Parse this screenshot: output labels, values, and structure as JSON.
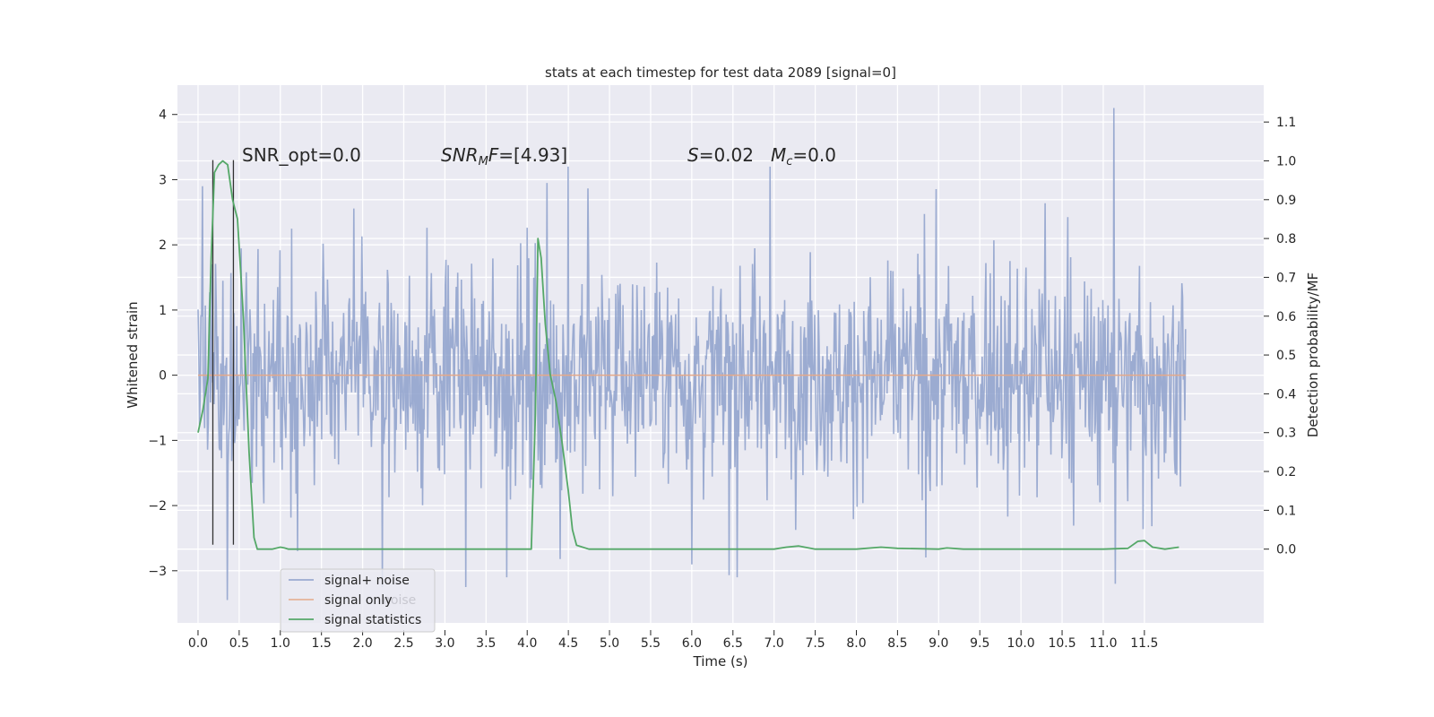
{
  "chart_data": {
    "type": "line",
    "title": "stats at each timestep for test data 2089 [signal=0]",
    "xlabel": "Time (s)",
    "ylabel_left": "Whitened strain",
    "ylabel_right": "Detection probability/MF",
    "xlim": [
      -0.25,
      12.95
    ],
    "ylim_left": [
      -3.8,
      4.45
    ],
    "ylim_right": [
      -0.19,
      1.195
    ],
    "x_ticks": [
      "0.0",
      "0.5",
      "1.0",
      "1.5",
      "2.0",
      "2.5",
      "3.0",
      "3.5",
      "4.0",
      "4.5",
      "5.0",
      "5.5",
      "6.0",
      "6.5",
      "7.0",
      "7.5",
      "8.0",
      "8.5",
      "9.0",
      "9.5",
      "10.0",
      "10.5",
      "11.0",
      "11.5"
    ],
    "y_left_ticks": [
      "4",
      "3",
      "2",
      "1",
      "0",
      "−1",
      "−2",
      "−3"
    ],
    "y_right_ticks": [
      "1.1",
      "1.0",
      "0.9",
      "0.8",
      "0.7",
      "0.6",
      "0.5",
      "0.4",
      "0.3",
      "0.2",
      "0.1",
      "0.0"
    ],
    "grid": true,
    "legend_position": "lower-left",
    "annotations": {
      "snr_opt": "SNR_opt=0.0",
      "snr_mf_base": "SNR",
      "snr_mf_sub": "M",
      "snr_mf_f": "F",
      "snr_mf_value": "=[4.93]",
      "s_symbol": "S",
      "s_value": "=0.02",
      "mc_symbol": "M",
      "mc_sub": "c",
      "mc_value": "=0.0"
    },
    "legend_entries": [
      "signal+ noise",
      "signal only",
      "signal statistics"
    ],
    "legend_overlap_text": "noise",
    "colors": {
      "signal_noise": "#8da0cb",
      "signal_only": "#e4a98a",
      "signal_statistics": "#55a868",
      "marker_lines": "#333333",
      "plot_background": "#eaeaf2",
      "grid": "#ffffff"
    },
    "series": [
      {
        "name": "signal+ noise",
        "axis": "left",
        "description_range": [
          -3.45,
          4.1
        ],
        "x_range": [
          0.0,
          12.0
        ],
        "typical_band": [
          -1.5,
          1.5
        ],
        "notable_peaks": [
          [
            0.05,
            2.9
          ],
          [
            11.13,
            4.1
          ],
          [
            4.5,
            3.2
          ],
          [
            6.95,
            3.2
          ],
          [
            11.15,
            -3.2
          ],
          [
            0.36,
            -3.45
          ],
          [
            6.55,
            -3.1
          ],
          [
            3.75,
            -3.1
          ]
        ]
      },
      {
        "name": "signal only",
        "axis": "left",
        "x": [
          0.0,
          12.0
        ],
        "y": [
          0.0,
          0.0
        ]
      },
      {
        "name": "signal statistics",
        "axis": "right",
        "x": [
          0.0,
          0.06,
          0.12,
          0.16,
          0.2,
          0.25,
          0.3,
          0.36,
          0.42,
          0.48,
          0.55,
          0.62,
          0.68,
          0.72,
          0.8,
          0.9,
          1.0,
          1.05,
          1.1,
          1.2,
          2.0,
          3.0,
          3.5,
          3.8,
          4.0,
          4.05,
          4.1,
          4.13,
          4.17,
          4.22,
          4.28,
          4.35,
          4.42,
          4.5,
          4.55,
          4.6,
          4.75,
          5.0,
          6.0,
          7.0,
          7.15,
          7.3,
          7.5,
          8.0,
          8.3,
          8.5,
          9.0,
          9.1,
          9.3,
          10.0,
          10.5,
          11.0,
          11.3,
          11.42,
          11.5,
          11.6,
          11.75,
          11.92
        ],
        "y": [
          0.3,
          0.36,
          0.44,
          0.75,
          0.97,
          0.99,
          1.0,
          0.99,
          0.9,
          0.85,
          0.6,
          0.25,
          0.03,
          0.0,
          0.0,
          0.0,
          0.005,
          0.003,
          0.0,
          0.0,
          0.0,
          0.0,
          0.0,
          0.0,
          0.0,
          0.0,
          0.35,
          0.8,
          0.75,
          0.58,
          0.45,
          0.38,
          0.28,
          0.15,
          0.05,
          0.01,
          0.0,
          0.0,
          0.0,
          0.0,
          0.005,
          0.008,
          0.0,
          0.0,
          0.005,
          0.002,
          0.0,
          0.003,
          0.0,
          0.0,
          0.0,
          0.0,
          0.002,
          0.02,
          0.022,
          0.005,
          0.0,
          0.005
        ]
      }
    ],
    "marker_lines_x": [
      0.18,
      0.43
    ],
    "marker_lines_y_range": [
      -2.6,
      3.3
    ]
  }
}
